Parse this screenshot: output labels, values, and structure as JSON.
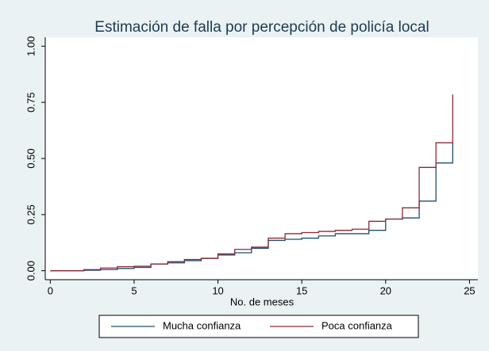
{
  "chart_data": {
    "type": "line",
    "drawstyle": "steps-post",
    "title": "Estimación de falla por percepción de policía local",
    "xlabel": "No. de meses",
    "x": [
      0,
      1,
      2,
      3,
      4,
      5,
      6,
      7,
      8,
      9,
      10,
      11,
      12,
      13,
      14,
      15,
      16,
      17,
      18,
      19,
      20,
      21,
      22,
      23,
      24
    ],
    "series": [
      {
        "name": "Mucha confianza",
        "color": "#1f4e6e",
        "values": [
          0,
          0,
          0.002,
          0.005,
          0.01,
          0.015,
          0.03,
          0.035,
          0.045,
          0.055,
          0.07,
          0.08,
          0.1,
          0.135,
          0.14,
          0.145,
          0.155,
          0.165,
          0.165,
          0.18,
          0.23,
          0.235,
          0.31,
          0.48,
          0.57
        ]
      },
      {
        "name": "Poca confianza",
        "color": "#8e2a36",
        "values": [
          0,
          0,
          0.005,
          0.012,
          0.018,
          0.02,
          0.03,
          0.04,
          0.05,
          0.055,
          0.075,
          0.095,
          0.105,
          0.145,
          0.165,
          0.17,
          0.175,
          0.18,
          0.185,
          0.22,
          0.23,
          0.28,
          0.46,
          0.57,
          0.785
        ]
      }
    ],
    "xlim": [
      -0.3,
      25.5
    ],
    "xticks": [
      0,
      5,
      10,
      15,
      20,
      25
    ],
    "ylim": [
      -0.04,
      1.04
    ],
    "yticks": [
      {
        "value": 0,
        "label": "0.00"
      },
      {
        "value": 0.25,
        "label": "0.25"
      },
      {
        "value": 0.5,
        "label": "0.50"
      },
      {
        "value": 0.75,
        "label": "0.75"
      },
      {
        "value": 1,
        "label": "1.00"
      }
    ],
    "grid": false,
    "legend": "bottom"
  }
}
